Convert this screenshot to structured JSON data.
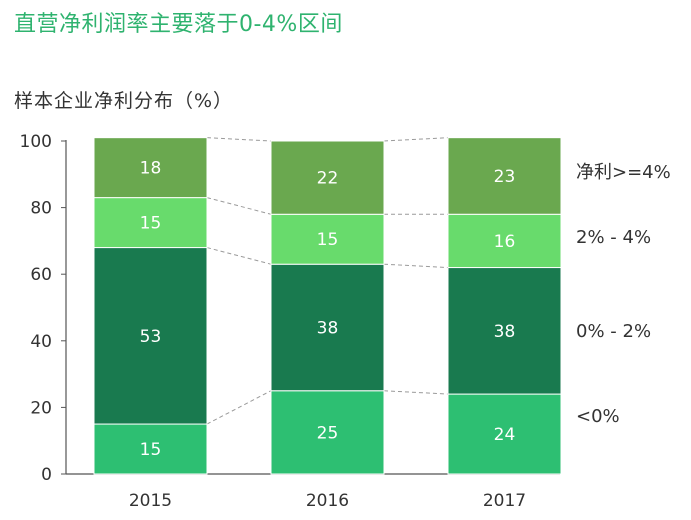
{
  "headline": "直营净利润率主要落于0-4%区间",
  "chart_data": {
    "type": "bar",
    "stacked": true,
    "title": "样本企业净利分布（%）",
    "categories": [
      "2015",
      "2016",
      "2017"
    ],
    "series": [
      {
        "name": "<0%",
        "values": [
          15,
          25,
          24
        ],
        "color": "#2dbf72"
      },
      {
        "name": "0% - 2%",
        "values": [
          53,
          38,
          38
        ],
        "color": "#197a4f"
      },
      {
        "name": "2% - 4%",
        "values": [
          15,
          15,
          16
        ],
        "color": "#68db6c"
      },
      {
        "name": "净利>=4%",
        "values": [
          18,
          22,
          23
        ],
        "color": "#6aa84f"
      }
    ],
    "ylim": [
      0,
      100
    ],
    "yticks": [
      0,
      20,
      40,
      60,
      80,
      100
    ],
    "legend": "right",
    "grid": false,
    "connector_lines": true
  }
}
